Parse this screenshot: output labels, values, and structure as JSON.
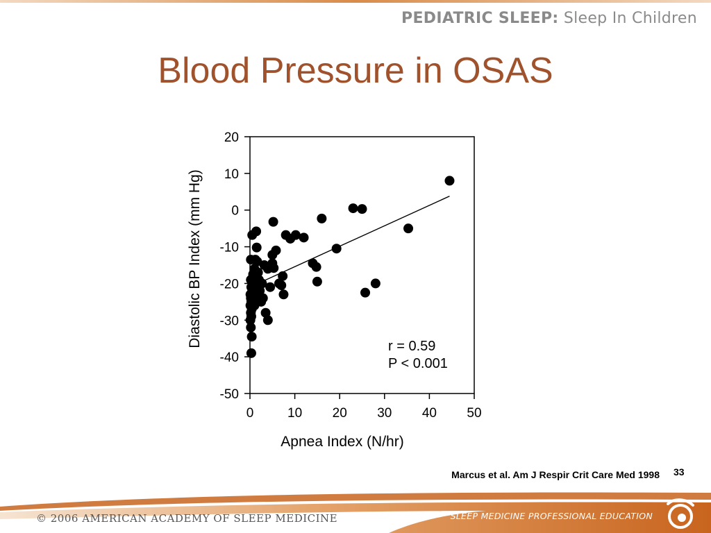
{
  "header": {
    "brand": "PEDIATRIC SLEEP:",
    "subtitle": "Sleep In Children"
  },
  "slide": {
    "title": "Blood Pressure in OSAS",
    "citation": "Marcus et al. Am J Respir Crit Care Med 1998",
    "page_number": "33"
  },
  "footer": {
    "copyright": "© 2006 AMERICAN ACADEMY OF SLEEP MEDICINE",
    "tagline": "SLEEP MEDICINE PROFESSIONAL EDUCATION"
  },
  "colors": {
    "title": "#a0522d",
    "accent_orange": "#c8641e",
    "footer_bar": "#d98c4a",
    "header_text": "#8a8a8a"
  },
  "chart_data": {
    "type": "scatter",
    "xlabel": "Apnea Index (N/hr)",
    "ylabel": "Diastolic BP Index (mm Hg)",
    "xlim": [
      0,
      50
    ],
    "ylim": [
      -50,
      20
    ],
    "xticks": [
      0,
      10,
      20,
      30,
      40,
      50
    ],
    "yticks": [
      20,
      10,
      0,
      -10,
      -20,
      -30,
      -40,
      -50
    ],
    "grid": false,
    "annotations": [
      "r = 0.59",
      "P < 0.001"
    ],
    "regression_line": {
      "x": [
        0,
        44.5
      ],
      "y": [
        -21,
        3.8
      ]
    },
    "points": [
      [
        0.2,
        -19
      ],
      [
        0.3,
        -21
      ],
      [
        0.1,
        -23
      ],
      [
        0.2,
        -24
      ],
      [
        0.3,
        -25
      ],
      [
        0.1,
        -26
      ],
      [
        0.4,
        -27
      ],
      [
        0.2,
        -28
      ],
      [
        0.3,
        -29
      ],
      [
        0.1,
        -30
      ],
      [
        0.2,
        -32
      ],
      [
        0.4,
        -34.5
      ],
      [
        0.3,
        -39
      ],
      [
        0.2,
        -13.5
      ],
      [
        0.5,
        -22
      ],
      [
        0.6,
        -23.5
      ],
      [
        0.8,
        -20
      ],
      [
        0.7,
        -17.5
      ],
      [
        0.9,
        -18.5
      ],
      [
        1,
        -16
      ],
      [
        1.1,
        -21
      ],
      [
        1.2,
        -22.5
      ],
      [
        1.3,
        -24
      ],
      [
        1,
        -26
      ],
      [
        1.2,
        -13.5
      ],
      [
        0.5,
        -6.8
      ],
      [
        1.4,
        -5.8
      ],
      [
        1.5,
        -10.2
      ],
      [
        1.6,
        -14
      ],
      [
        1.8,
        -17
      ],
      [
        2,
        -19
      ],
      [
        2.2,
        -22
      ],
      [
        2.5,
        -25
      ],
      [
        2.7,
        -20
      ],
      [
        2.9,
        -24
      ],
      [
        3.2,
        -15
      ],
      [
        3.5,
        -28
      ],
      [
        4,
        -30
      ],
      [
        4,
        -16
      ],
      [
        4.5,
        -21
      ],
      [
        5,
        -12.2
      ],
      [
        5,
        -14.5
      ],
      [
        5.2,
        -3.2
      ],
      [
        5.3,
        -15.8
      ],
      [
        5.8,
        -11
      ],
      [
        6.5,
        -20
      ],
      [
        7,
        -20.5
      ],
      [
        7.3,
        -18
      ],
      [
        7.5,
        -23
      ],
      [
        8,
        -6.8
      ],
      [
        9,
        -7.8
      ],
      [
        10.2,
        -6.8
      ],
      [
        12,
        -7.5
      ],
      [
        14,
        -14.5
      ],
      [
        14.8,
        -15.5
      ],
      [
        15,
        -19.5
      ],
      [
        16,
        -2.3
      ],
      [
        19.3,
        -10.5
      ],
      [
        23,
        0.5
      ],
      [
        25,
        0.3
      ],
      [
        25.7,
        -22.5
      ],
      [
        28,
        -20
      ],
      [
        35.3,
        -5
      ],
      [
        44.5,
        8
      ]
    ]
  }
}
